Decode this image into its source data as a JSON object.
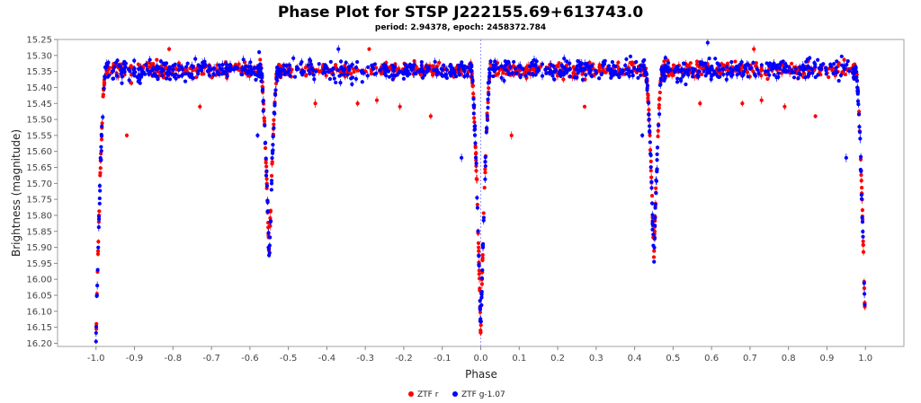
{
  "chart_data": {
    "type": "scatter",
    "title": "Phase Plot for STSP J222155.69+613743.0",
    "subtitle": "period: 2.94378, epoch: 2458372.784",
    "xlabel": "Phase",
    "ylabel": "Brightness (magnitude)",
    "xlim": [
      -1.1,
      1.1
    ],
    "ylim": [
      16.21,
      15.25
    ],
    "y_inverted": true,
    "x_ticks": [
      -1.0,
      -0.9,
      -0.8,
      -0.7,
      -0.6,
      -0.5,
      -0.4,
      -0.3,
      -0.2,
      -0.1,
      0.0,
      0.1,
      0.2,
      0.3,
      0.4,
      0.5,
      0.6,
      0.7,
      0.8,
      0.9,
      1.0
    ],
    "x_tick_labels": [
      "-1.0",
      "-0.9",
      "-0.8",
      "-0.7",
      "-0.6",
      "-0.5",
      "-0.4",
      "-0.3",
      "-0.2",
      "-0.1",
      "0.0",
      "0.1",
      "0.2",
      "0.3",
      "0.4",
      "0.5",
      "0.6",
      "0.7",
      "0.8",
      "0.9",
      "1.0"
    ],
    "y_ticks": [
      15.25,
      15.3,
      15.35,
      15.4,
      15.45,
      15.5,
      15.55,
      15.6,
      15.65,
      15.7,
      15.75,
      15.8,
      15.85,
      15.9,
      15.95,
      16.0,
      16.05,
      16.1,
      16.15,
      16.2
    ],
    "y_tick_labels": [
      "15.25",
      "15.30",
      "15.35",
      "15.40",
      "15.45",
      "15.50",
      "15.55",
      "15.60",
      "15.65",
      "15.70",
      "15.75",
      "15.80",
      "15.85",
      "15.90",
      "15.95",
      "16.00",
      "16.05",
      "16.10",
      "16.15",
      "16.20"
    ],
    "reference_line_x": 0.0,
    "grid": false,
    "legend_position": "bottom-center",
    "light_curve_model": {
      "baseline_mag": 15.345,
      "primary_eclipse": {
        "phase": 0.0,
        "depth_mag": 16.18,
        "ingress_half_width": 0.025,
        "mid_half_width": 0.008
      },
      "secondary_eclipse": {
        "phase": 0.45,
        "depth_mag": 15.94,
        "ingress_half_width": 0.022,
        "mid_half_width": 0.008
      }
    },
    "series": [
      {
        "name": "ZTF r",
        "color": "#ff0000",
        "outliers": [
          {
            "x": -0.92,
            "y": 15.55
          },
          {
            "x": -0.73,
            "y": 15.46
          },
          {
            "x": -0.43,
            "y": 15.45
          },
          {
            "x": -0.32,
            "y": 15.45
          },
          {
            "x": -0.27,
            "y": 15.44
          },
          {
            "x": -0.21,
            "y": 15.46
          },
          {
            "x": -0.13,
            "y": 15.49
          },
          {
            "x": -0.29,
            "y": 15.28
          },
          {
            "x": -0.81,
            "y": 15.28
          },
          {
            "x": 0.08,
            "y": 15.55
          },
          {
            "x": 0.27,
            "y": 15.46
          },
          {
            "x": 0.57,
            "y": 15.45
          },
          {
            "x": 0.68,
            "y": 15.45
          },
          {
            "x": 0.73,
            "y": 15.44
          },
          {
            "x": 0.79,
            "y": 15.46
          },
          {
            "x": 0.87,
            "y": 15.49
          },
          {
            "x": 0.71,
            "y": 15.28
          }
        ]
      },
      {
        "name": "ZTF g-1.07",
        "color": "#0000ff",
        "outliers": [
          {
            "x": -0.05,
            "y": 15.62
          },
          {
            "x": 0.95,
            "y": 15.62
          },
          {
            "x": -0.58,
            "y": 15.55
          },
          {
            "x": 0.42,
            "y": 15.55
          },
          {
            "x": -0.37,
            "y": 15.28
          },
          {
            "x": 0.59,
            "y": 15.26
          }
        ]
      }
    ]
  }
}
